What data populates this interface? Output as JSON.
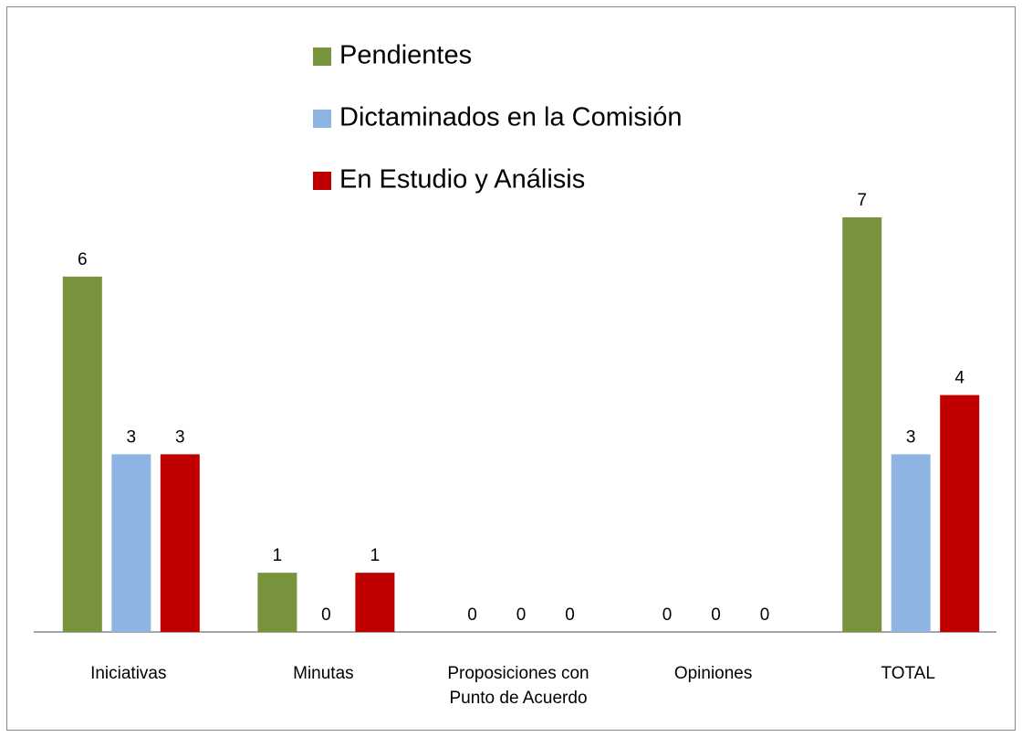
{
  "chart_data": {
    "type": "bar",
    "categories": [
      "Iniciativas",
      "Minutas",
      "Proposiciones con Punto de Acuerdo",
      "Opiniones",
      "TOTAL"
    ],
    "series": [
      {
        "name": "Pendientes",
        "color": "#77933c",
        "values": [
          6,
          1,
          0,
          0,
          7
        ]
      },
      {
        "name": "Dictaminados en la Comisión",
        "color": "#8eb4e3",
        "values": [
          3,
          0,
          0,
          0,
          3
        ]
      },
      {
        "name": "En Estudio y Análisis",
        "color": "#c00000",
        "values": [
          3,
          1,
          0,
          0,
          4
        ]
      }
    ],
    "ylim": [
      0,
      7
    ],
    "legend": "top"
  }
}
